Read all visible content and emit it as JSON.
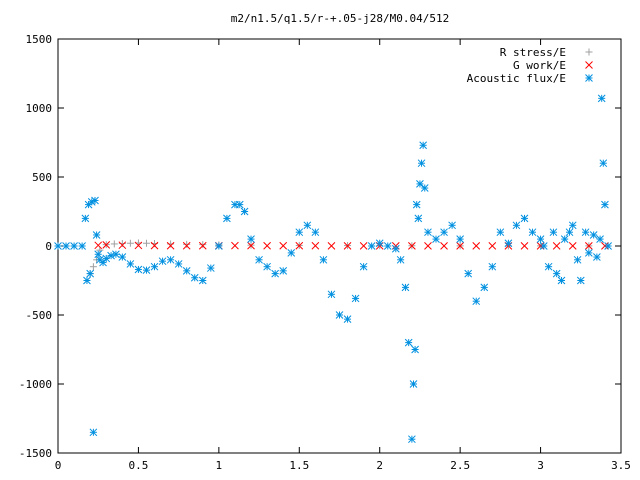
{
  "chart_data": {
    "type": "scatter",
    "title": "m2/n1.5/q1.5/r-+.05-j28/M0.04/512",
    "xlabel": "",
    "ylabel": "",
    "xlim": [
      0,
      3.5
    ],
    "ylim": [
      -1500,
      1500
    ],
    "xticks": [
      0,
      0.5,
      1,
      1.5,
      2,
      2.5,
      3,
      3.5
    ],
    "xtick_labels": [
      "0",
      "0.5",
      "1",
      "1.5",
      "2",
      "2.5",
      "3",
      "3.5"
    ],
    "yticks": [
      -1500,
      -1000,
      -500,
      0,
      500,
      1000,
      1500
    ],
    "ytick_labels": [
      "-1500",
      "-1000",
      "-500",
      "0",
      "500",
      "1000",
      "1500"
    ],
    "grid": false,
    "legend_position": "top-right",
    "colors": {
      "r_stress": "#a0a0a0",
      "g_work": "#ff0000",
      "acoustic_flux": "#0090e0"
    },
    "series": [
      {
        "name": "R stress/E",
        "marker": "plus",
        "color": "#a0a0a0",
        "x": [
          0.2,
          0.22,
          0.24,
          0.26,
          0.3,
          0.35,
          0.4,
          0.45,
          0.5,
          0.55,
          0.6,
          0.7,
          0.8,
          0.9,
          1.0,
          1.2,
          1.5,
          1.8,
          2.0,
          2.2,
          2.5,
          2.8,
          3.0,
          3.3
        ],
        "y": [
          -200,
          -150,
          -100,
          -30,
          10,
          15,
          18,
          20,
          22,
          20,
          18,
          15,
          12,
          10,
          8,
          6,
          4,
          3,
          2,
          2,
          1,
          1,
          1,
          1
        ]
      },
      {
        "name": "G work/E",
        "marker": "cross",
        "color": "#ff0000",
        "x": [
          0.25,
          0.3,
          0.4,
          0.5,
          0.6,
          0.7,
          0.8,
          0.9,
          1.0,
          1.1,
          1.2,
          1.3,
          1.4,
          1.5,
          1.6,
          1.7,
          1.8,
          1.9,
          2.0,
          2.1,
          2.2,
          2.3,
          2.4,
          2.5,
          2.6,
          2.7,
          2.8,
          2.9,
          3.0,
          3.1,
          3.2,
          3.3,
          3.4
        ],
        "y": [
          5,
          8,
          6,
          4,
          3,
          2,
          2,
          2,
          2,
          3,
          3,
          2,
          2,
          2,
          2,
          1,
          1,
          1,
          1,
          1,
          1,
          1,
          1,
          1,
          1,
          1,
          1,
          1,
          1,
          1,
          1,
          1,
          1
        ]
      },
      {
        "name": "Acoustic flux/E",
        "marker": "star",
        "color": "#0090e0",
        "x": [
          0.0,
          0.05,
          0.1,
          0.15,
          0.17,
          0.18,
          0.19,
          0.2,
          0.21,
          0.22,
          0.23,
          0.24,
          0.25,
          0.26,
          0.28,
          0.3,
          0.33,
          0.36,
          0.4,
          0.45,
          0.5,
          0.55,
          0.6,
          0.65,
          0.7,
          0.75,
          0.8,
          0.85,
          0.9,
          0.95,
          1.0,
          1.05,
          1.1,
          1.13,
          1.16,
          1.2,
          1.25,
          1.3,
          1.35,
          1.4,
          1.45,
          1.5,
          1.55,
          1.6,
          1.65,
          1.7,
          1.75,
          1.8,
          1.85,
          1.9,
          1.95,
          2.0,
          2.05,
          2.1,
          2.13,
          2.16,
          2.18,
          2.2,
          2.21,
          2.22,
          2.23,
          2.24,
          2.25,
          2.26,
          2.27,
          2.28,
          2.3,
          2.35,
          2.4,
          2.45,
          2.5,
          2.55,
          2.6,
          2.65,
          2.7,
          2.75,
          2.8,
          2.85,
          2.9,
          2.95,
          3.0,
          3.02,
          3.05,
          3.08,
          3.1,
          3.13,
          3.15,
          3.18,
          3.2,
          3.23,
          3.25,
          3.28,
          3.3,
          3.33,
          3.35,
          3.37,
          3.38,
          3.39,
          3.4,
          3.42
        ],
        "y": [
          0,
          0,
          0,
          0,
          200,
          -250,
          300,
          -200,
          320,
          -1350,
          330,
          80,
          -60,
          -100,
          -120,
          -90,
          -70,
          -60,
          -80,
          -130,
          -170,
          -175,
          -150,
          -110,
          -100,
          -130,
          -180,
          -230,
          -250,
          -160,
          0,
          200,
          300,
          300,
          250,
          50,
          -100,
          -150,
          -200,
          -180,
          -50,
          100,
          150,
          100,
          -100,
          -350,
          -500,
          -530,
          -380,
          -150,
          0,
          20,
          0,
          -20,
          -100,
          -300,
          -700,
          -1400,
          -1000,
          -750,
          300,
          200,
          450,
          600,
          730,
          420,
          100,
          50,
          100,
          150,
          50,
          -200,
          -400,
          -300,
          -150,
          100,
          20,
          150,
          200,
          100,
          50,
          0,
          -150,
          100,
          -200,
          -250,
          50,
          100,
          150,
          -100,
          -250,
          100,
          -50,
          80,
          -80,
          50,
          1070,
          600,
          300,
          0
        ]
      }
    ]
  }
}
